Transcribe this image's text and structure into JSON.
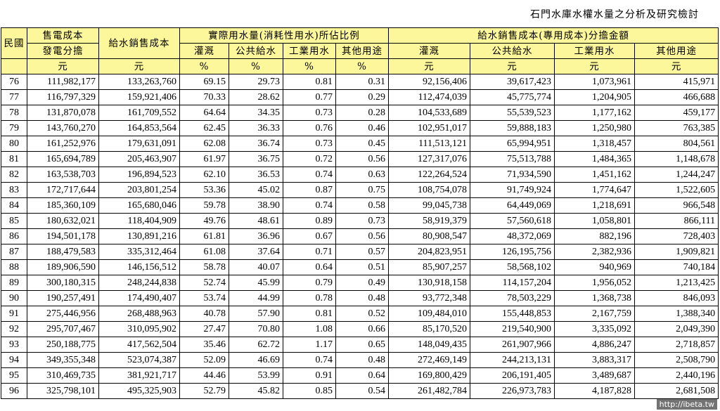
{
  "doc_title": "石門水庫水權水量之分析及研究檢討",
  "header": {
    "row1": {
      "year": "民國",
      "power_cost": "售電成本",
      "water_cost": "給水銷售成本",
      "ratio_group": "實際用水量(消耗性用水)所佔比例",
      "alloc_group": "給水銷售成本(專用成本)分擔金額"
    },
    "row2": {
      "power_cost_sub": "發電分擔",
      "ratio": [
        "灌溉",
        "公共給水",
        "工業用水",
        "其他用途"
      ],
      "alloc": [
        "灌溉",
        "公共給水",
        "工業用水",
        "其他用途"
      ]
    },
    "units": {
      "power_cost": "元",
      "water_cost": "元",
      "ratio": [
        "%",
        "%",
        "%",
        "%"
      ],
      "alloc": [
        "元",
        "元",
        "元",
        "元"
      ]
    }
  },
  "rows": [
    [
      "76",
      "111,982,177",
      "133,263,760",
      "69.15",
      "29.73",
      "0.81",
      "0.31",
      "92,156,406",
      "39,617,423",
      "1,073,961",
      "415,971"
    ],
    [
      "77",
      "116,797,329",
      "159,921,406",
      "70.33",
      "28.62",
      "0.77",
      "0.29",
      "112,474,039",
      "45,775,774",
      "1,204,905",
      "466,688"
    ],
    [
      "78",
      "131,870,078",
      "161,709,552",
      "64.64",
      "34.35",
      "0.73",
      "0.28",
      "104,533,689",
      "55,539,523",
      "1,177,162",
      "459,177"
    ],
    [
      "79",
      "143,760,270",
      "164,853,564",
      "62.45",
      "36.33",
      "0.76",
      "0.46",
      "102,951,017",
      "59,888,183",
      "1,250,980",
      "763,385"
    ],
    [
      "80",
      "161,252,976",
      "179,631,091",
      "62.08",
      "36.74",
      "0.73",
      "0.45",
      "111,513,121",
      "65,994,951",
      "1,318,457",
      "804,561"
    ],
    [
      "81",
      "165,694,789",
      "205,463,907",
      "61.97",
      "36.75",
      "0.72",
      "0.56",
      "127,317,076",
      "75,513,788",
      "1,484,365",
      "1,148,678"
    ],
    [
      "82",
      "163,538,703",
      "196,894,523",
      "62.10",
      "36.53",
      "0.74",
      "0.63",
      "122,264,524",
      "71,934,590",
      "1,451,162",
      "1,244,247"
    ],
    [
      "83",
      "172,717,644",
      "203,801,254",
      "53.36",
      "45.02",
      "0.87",
      "0.75",
      "108,754,078",
      "91,749,924",
      "1,774,647",
      "1,522,605"
    ],
    [
      "84",
      "185,360,109",
      "165,680,046",
      "59.78",
      "38.90",
      "0.74",
      "0.58",
      "99,045,738",
      "64,449,069",
      "1,218,691",
      "966,548"
    ],
    [
      "85",
      "180,632,021",
      "118,404,909",
      "49.76",
      "48.61",
      "0.89",
      "0.73",
      "58,919,379",
      "57,560,618",
      "1,058,801",
      "866,111"
    ],
    [
      "86",
      "194,501,178",
      "130,891,216",
      "61.81",
      "36.96",
      "0.67",
      "0.56",
      "80,908,547",
      "48,372,069",
      "882,196",
      "728,403"
    ],
    [
      "87",
      "188,479,583",
      "335,312,464",
      "61.08",
      "37.64",
      "0.71",
      "0.57",
      "204,823,951",
      "126,195,756",
      "2,382,936",
      "1,909,821"
    ],
    [
      "88",
      "189,906,590",
      "146,156,512",
      "58.78",
      "40.07",
      "0.64",
      "0.51",
      "85,907,257",
      "58,568,102",
      "940,969",
      "740,184"
    ],
    [
      "89",
      "300,180,315",
      "248,244,838",
      "52.74",
      "45.99",
      "0.79",
      "0.49",
      "130,918,158",
      "114,157,204",
      "1,956,052",
      "1,213,425"
    ],
    [
      "90",
      "190,257,491",
      "174,490,407",
      "53.74",
      "44.99",
      "0.78",
      "0.48",
      "93,772,348",
      "78,503,229",
      "1,368,738",
      "846,093"
    ],
    [
      "91",
      "275,446,956",
      "268,488,963",
      "40.78",
      "57.90",
      "0.81",
      "0.52",
      "109,484,010",
      "155,448,853",
      "2,167,759",
      "1,388,340"
    ],
    [
      "92",
      "295,707,467",
      "310,095,902",
      "27.47",
      "70.80",
      "1.08",
      "0.66",
      "85,170,520",
      "219,540,900",
      "3,335,092",
      "2,049,390"
    ],
    [
      "93",
      "250,188,775",
      "417,562,504",
      "35.46",
      "62.72",
      "1.17",
      "0.65",
      "148,049,435",
      "261,907,966",
      "4,886,247",
      "2,718,857"
    ],
    [
      "94",
      "349,355,348",
      "523,074,387",
      "52.09",
      "46.69",
      "0.74",
      "0.48",
      "272,469,149",
      "244,213,131",
      "3,883,317",
      "2,508,790"
    ],
    [
      "95",
      "310,469,735",
      "381,921,717",
      "44.46",
      "53.99",
      "0.91",
      "0.64",
      "169,800,429",
      "206,191,405",
      "3,489,687",
      "2,440,196"
    ],
    [
      "96",
      "325,798,101",
      "495,325,903",
      "52.79",
      "45.82",
      "0.85",
      "0.54",
      "261,482,784",
      "226,973,783",
      "4,187,828",
      "2,681,508"
    ]
  ],
  "watermark": "http://ibeta.tw"
}
